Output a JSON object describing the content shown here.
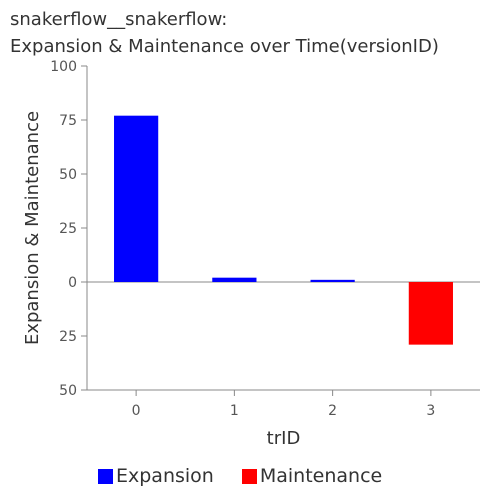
{
  "chart_data": {
    "type": "bar",
    "title_line1": "snakerflow__snakerflow:",
    "title_line2": "Expansion & Maintenance over Time(versionID)",
    "xlabel": "trID",
    "ylabel": "Expansion & Maintenance",
    "categories": [
      "0",
      "1",
      "2",
      "3"
    ],
    "series": [
      {
        "name": "Expansion",
        "color": "#0000ff",
        "values": [
          77,
          2,
          1,
          0
        ]
      },
      {
        "name": "Maintenance",
        "color": "#ff0000",
        "values": [
          0,
          0,
          0,
          29
        ]
      }
    ],
    "ylim": [
      -50,
      100
    ],
    "yticks": [
      100,
      75,
      50,
      25,
      0,
      -25,
      -50
    ],
    "ytick_labels": [
      "100",
      "75",
      "50",
      "25",
      "0",
      "25",
      "50"
    ],
    "legend_position": "bottom",
    "grid": false
  }
}
